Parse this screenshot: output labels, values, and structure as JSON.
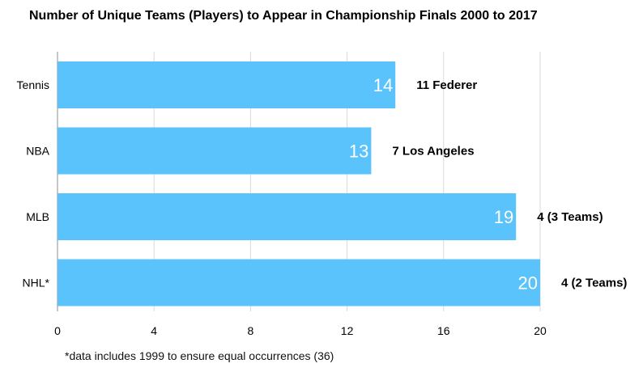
{
  "chart_data": {
    "type": "bar",
    "orientation": "horizontal",
    "title": "Number of Unique Teams (Players) to Appear in Championship Finals 2000 to 2017",
    "categories": [
      "Tennis",
      "NBA",
      "MLB",
      "NHL*"
    ],
    "values": [
      14,
      13,
      19,
      20
    ],
    "value_labels": [
      "14",
      "13",
      "19",
      "20"
    ],
    "annotations": [
      "11 Federer",
      "7 Los Angeles",
      "4 (3 Teams)",
      "4 (2 Teams)"
    ],
    "x_ticks": [
      "0",
      "4",
      "8",
      "12",
      "16",
      "20"
    ],
    "xlim": [
      0,
      20
    ],
    "xlabel": "",
    "ylabel": "",
    "grid": true,
    "bar_color": "#5bc3fb",
    "footnote": "*data includes 1999 to ensure equal occurrences (36)"
  }
}
